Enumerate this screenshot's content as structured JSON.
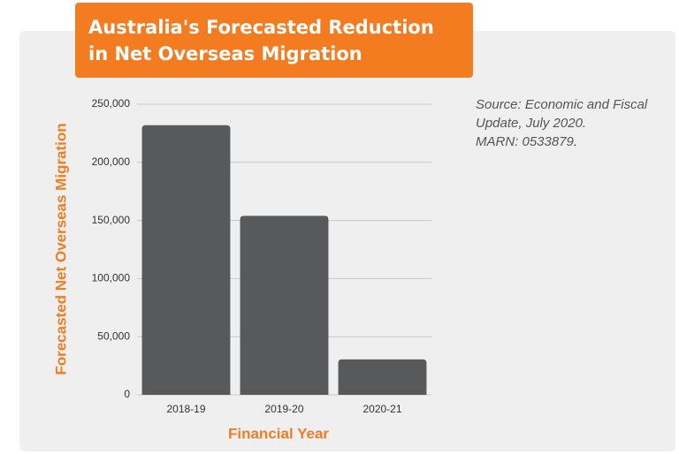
{
  "chart_data": {
    "type": "bar",
    "title": "Australia's Forecasted Reduction in Net Overseas Migration",
    "source": [
      "Source: Economic and Fiscal Update, July 2020.",
      "MARN: 0533879."
    ],
    "x_label": "Financial Year",
    "y_label": "Forecasted Net Overseas Migration",
    "categories": [
      "2018-19",
      "2019-20",
      "2020-21"
    ],
    "values": [
      232000,
      154000,
      30500
    ],
    "color": "#58595b",
    "ylim": [
      0,
      250000
    ],
    "yticks": [
      0,
      {
        "value": 50000,
        "label": "50,000"
      },
      {
        "value": 100000,
        "label": "100,000"
      },
      {
        "value": 150000,
        "label": "150,000"
      },
      {
        "value": 200000,
        "label": "200,000"
      },
      {
        "value": 250000,
        "label": "250,000"
      }
    ],
    "grid": true
  }
}
